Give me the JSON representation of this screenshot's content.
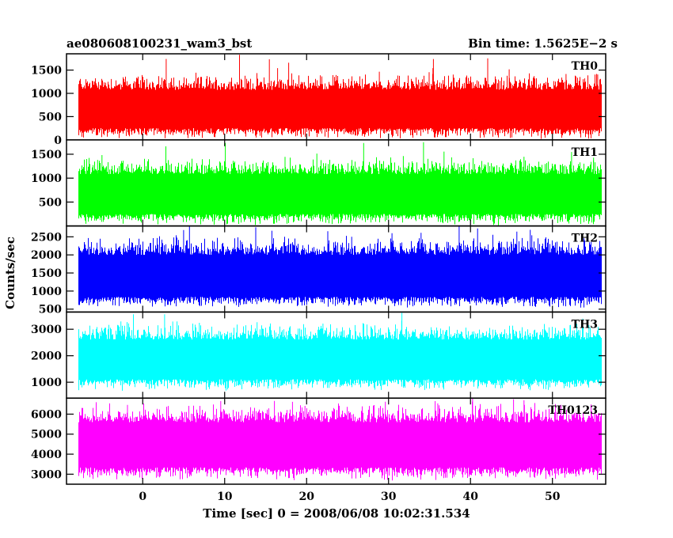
{
  "chart_data": {
    "type": "line",
    "title_left": "ae080608100231_wam3_bst",
    "title_right": "Bin time: 1.5625E−2 s",
    "xlabel": "Time [sec] 0 = 2008/06/08 10:02:31.534",
    "ylabel": "Counts/sec",
    "xlim": [
      -9.3,
      56.5
    ],
    "x_data_range": [
      -7.8,
      56.0
    ],
    "xticks": [
      0,
      10,
      20,
      30,
      40,
      50
    ],
    "grid": false,
    "panels": [
      {
        "name": "TH0",
        "color": "#ff0000",
        "ylim": [
          0,
          1850
        ],
        "yticks": [
          0,
          500,
          1000,
          1500
        ],
        "mean": 700,
        "low_envelope": 60,
        "high_envelope": 1380,
        "spike_max": 1850
      },
      {
        "name": "TH1",
        "color": "#00ff00",
        "ylim": [
          0,
          1800
        ],
        "yticks": [
          500,
          1000,
          1500
        ],
        "mean": 720,
        "low_envelope": 50,
        "high_envelope": 1380,
        "spike_max": 1800
      },
      {
        "name": "TH2",
        "color": "#0000ff",
        "ylim": [
          420,
          2800
        ],
        "yticks": [
          500,
          1000,
          1500,
          2000,
          2500
        ],
        "mean": 1450,
        "low_envelope": 580,
        "high_envelope": 2450,
        "spike_max": 2800
      },
      {
        "name": "TH3",
        "color": "#00ffff",
        "ylim": [
          400,
          3650
        ],
        "yticks": [
          1000,
          2000,
          3000
        ],
        "mean": 1950,
        "low_envelope": 750,
        "high_envelope": 3150,
        "spike_max": 3650
      },
      {
        "name": "TH0123",
        "color": "#ff00ff",
        "ylim": [
          2500,
          6800
        ],
        "yticks": [
          3000,
          4000,
          5000,
          6000
        ],
        "mean": 4600,
        "low_envelope": 2800,
        "high_envelope": 6400,
        "spike_max": 6800
      }
    ]
  }
}
